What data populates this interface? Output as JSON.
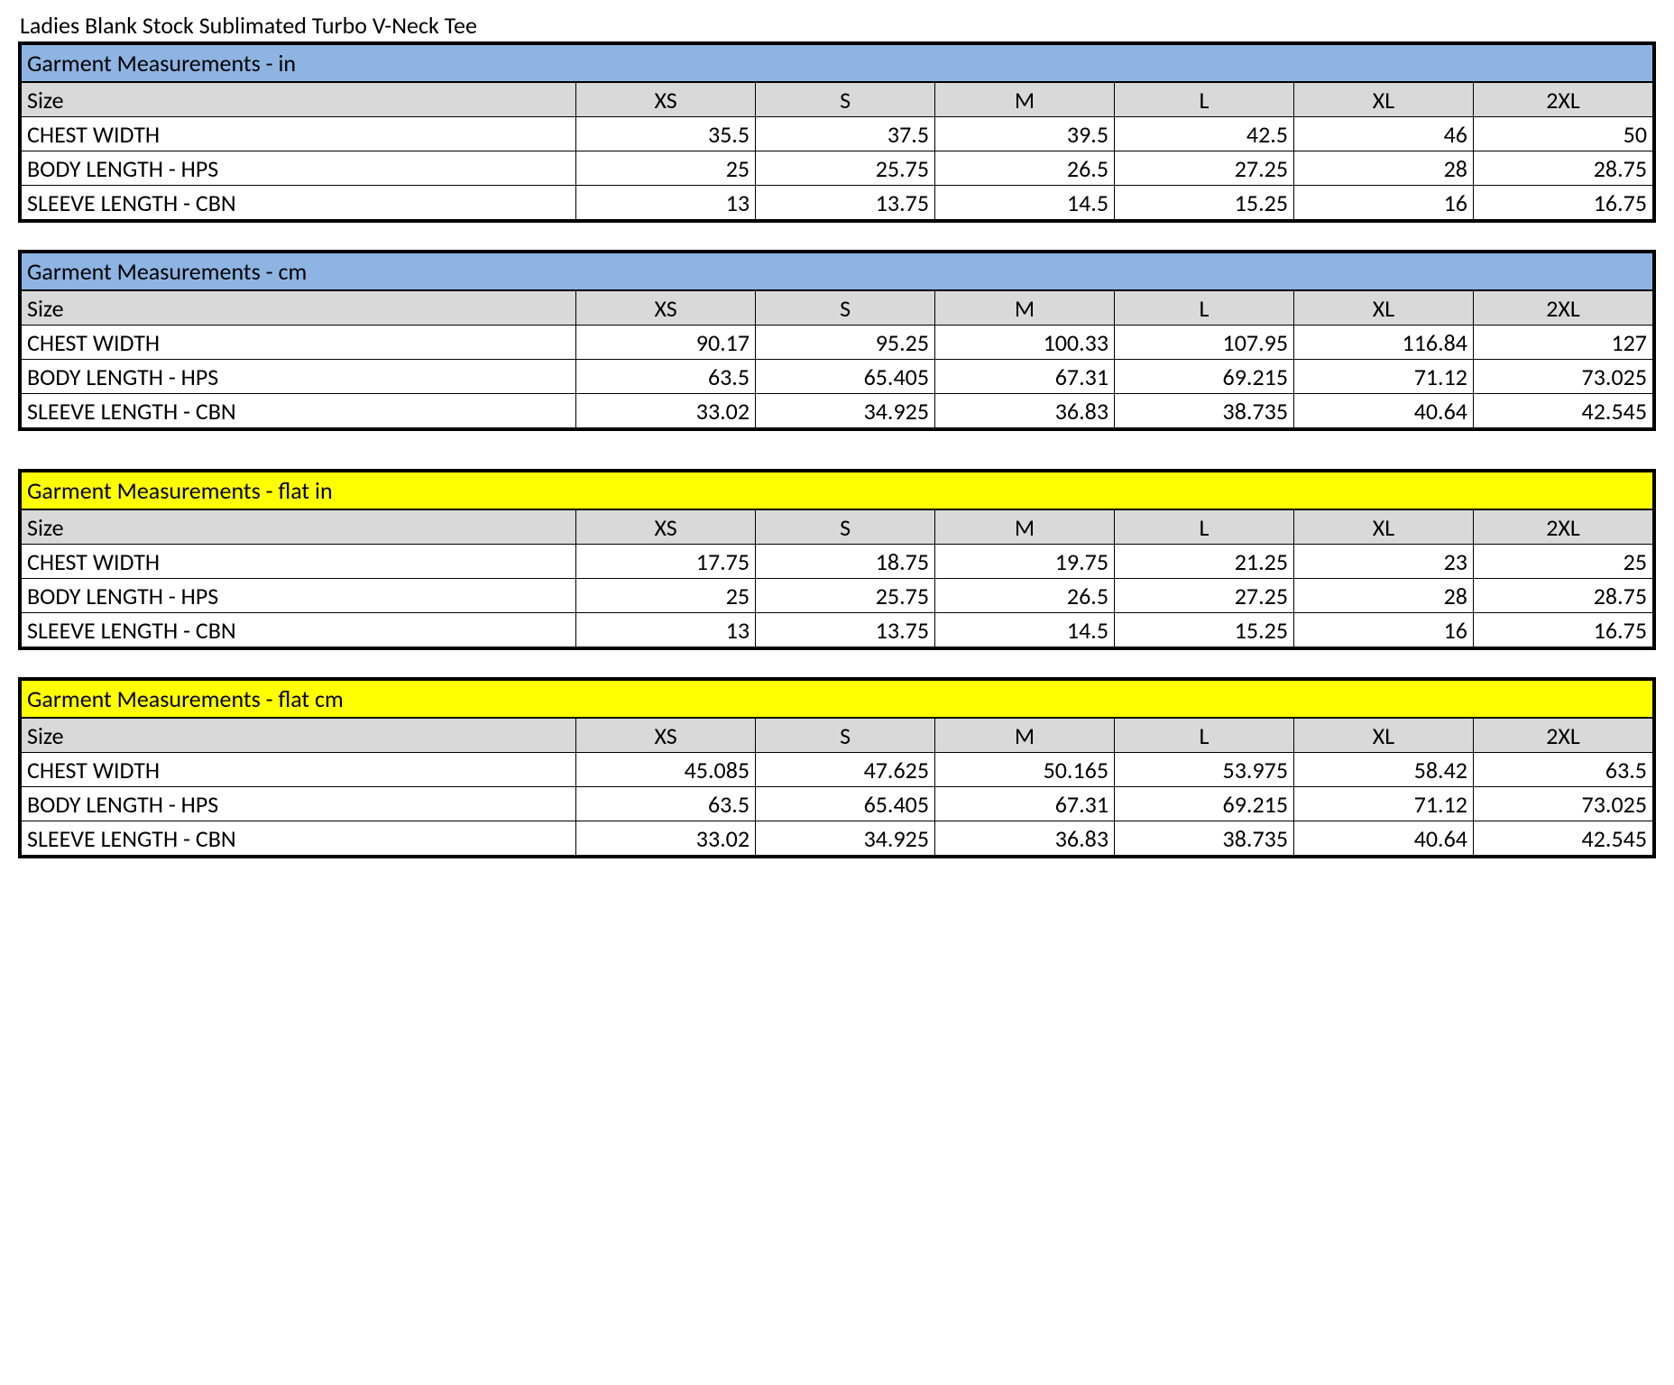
{
  "title": "Ladies Blank Stock Sublimated Turbo V-Neck Tee",
  "colors": {
    "blue_header": "#8db4e2",
    "yellow_header": "#ffff00",
    "grey_row": "#d9d9d9",
    "border": "#000000",
    "background": "#ffffff",
    "text": "#000000"
  },
  "typography": {
    "font_family": "Calibri, Arial, sans-serif",
    "font_size_pt": 20,
    "font_weight": "normal"
  },
  "size_header_label": "Size",
  "sizes": [
    "XS",
    "S",
    "M",
    "L",
    "XL",
    "2XL"
  ],
  "row_labels": [
    "CHEST WIDTH",
    "BODY LENGTH - HPS",
    "SLEEVE LENGTH - CBN"
  ],
  "tables": [
    {
      "title": "Garment Measurements - in",
      "header_color": "#8db4e2",
      "rows": [
        [
          "35.5",
          "37.5",
          "39.5",
          "42.5",
          "46",
          "50"
        ],
        [
          "25",
          "25.75",
          "26.5",
          "27.25",
          "28",
          "28.75"
        ],
        [
          "13",
          "13.75",
          "14.5",
          "15.25",
          "16",
          "16.75"
        ]
      ]
    },
    {
      "title": "Garment Measurements - cm",
      "header_color": "#8db4e2",
      "rows": [
        [
          "90.17",
          "95.25",
          "100.33",
          "107.95",
          "116.84",
          "127"
        ],
        [
          "63.5",
          "65.405",
          "67.31",
          "69.215",
          "71.12",
          "73.025"
        ],
        [
          "33.02",
          "34.925",
          "36.83",
          "38.735",
          "40.64",
          "42.545"
        ]
      ]
    },
    {
      "title": "Garment Measurements - flat in",
      "header_color": "#ffff00",
      "rows": [
        [
          "17.75",
          "18.75",
          "19.75",
          "21.25",
          "23",
          "25"
        ],
        [
          "25",
          "25.75",
          "26.5",
          "27.25",
          "28",
          "28.75"
        ],
        [
          "13",
          "13.75",
          "14.5",
          "15.25",
          "16",
          "16.75"
        ]
      ]
    },
    {
      "title": "Garment Measurements - flat cm",
      "header_color": "#ffff00",
      "rows": [
        [
          "45.085",
          "47.625",
          "50.165",
          "53.975",
          "58.42",
          "63.5"
        ],
        [
          "63.5",
          "65.405",
          "67.31",
          "69.215",
          "71.12",
          "73.025"
        ],
        [
          "33.02",
          "34.925",
          "36.83",
          "38.735",
          "40.64",
          "42.545"
        ]
      ]
    }
  ]
}
